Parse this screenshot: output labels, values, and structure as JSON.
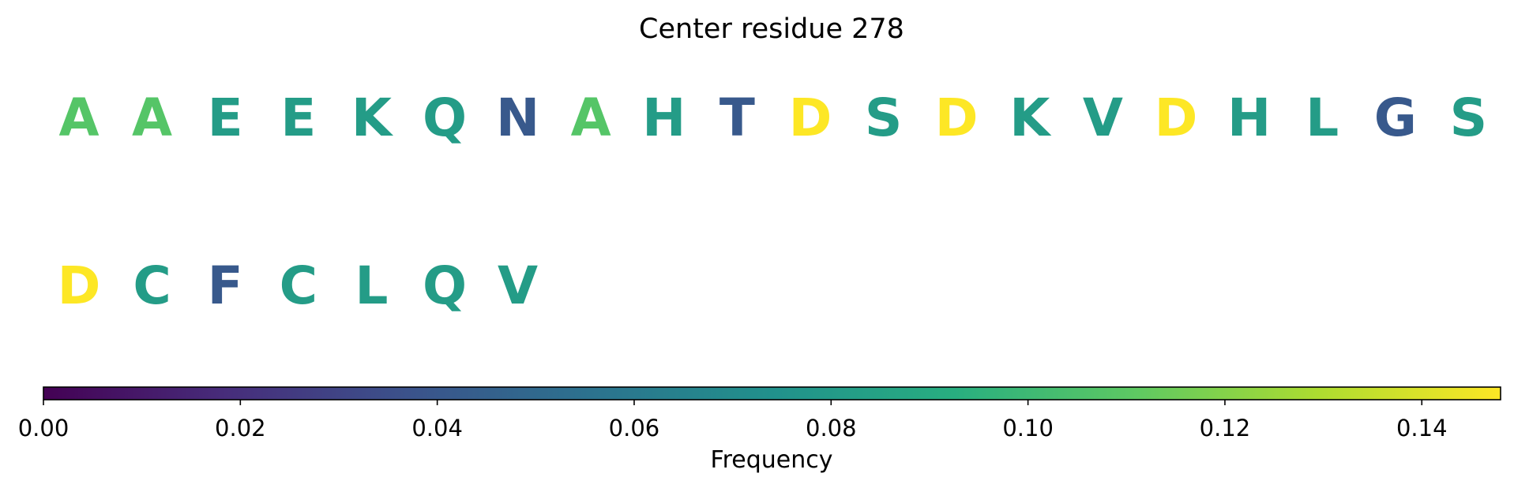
{
  "chart_data": {
    "type": "sequence-logo-colored",
    "title": "Center residue 278",
    "rows": [
      {
        "letters": [
          "A",
          "A",
          "E",
          "E",
          "K",
          "Q",
          "N",
          "A",
          "H",
          "T",
          "D",
          "S",
          "D",
          "K",
          "V",
          "D",
          "H",
          "L",
          "G",
          "S"
        ],
        "frequencies": [
          0.108,
          0.108,
          0.081,
          0.081,
          0.081,
          0.081,
          0.041,
          0.108,
          0.081,
          0.041,
          0.148,
          0.081,
          0.148,
          0.081,
          0.081,
          0.148,
          0.081,
          0.081,
          0.041,
          0.081
        ]
      },
      {
        "letters": [
          "D",
          "C",
          "F",
          "C",
          "L",
          "Q",
          "V"
        ],
        "frequencies": [
          0.148,
          0.081,
          0.041,
          0.081,
          0.081,
          0.081,
          0.081
        ]
      }
    ],
    "colorbar": {
      "label": "Frequency",
      "range": [
        0,
        0.148
      ],
      "ticks": [
        0.0,
        0.02,
        0.04,
        0.06,
        0.08,
        0.1,
        0.12,
        0.14
      ],
      "tick_labels": [
        "0.00",
        "0.02",
        "0.04",
        "0.06",
        "0.08",
        "0.10",
        "0.12",
        "0.14"
      ],
      "colormap": "viridis",
      "orientation": "horizontal",
      "placement": "bottom"
    }
  }
}
